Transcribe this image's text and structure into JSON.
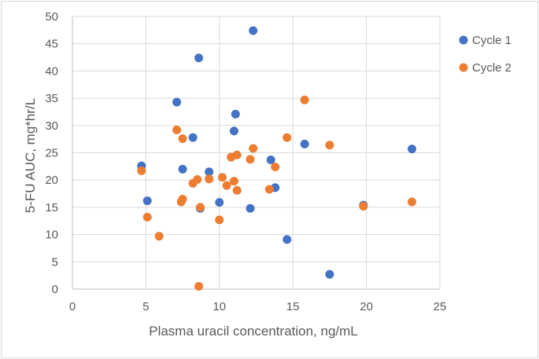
{
  "chart_data": {
    "type": "scatter",
    "title": "",
    "xlabel": "Plasma uracil concentration, ng/mL",
    "ylabel": "5-FU AUC, mg*hr/L",
    "xlim": [
      0,
      25
    ],
    "ylim": [
      0,
      50
    ],
    "xticks": [
      "0",
      "5",
      "10",
      "15",
      "20",
      "25"
    ],
    "yticks": [
      "0",
      "5",
      "10",
      "15",
      "20",
      "25",
      "30",
      "35",
      "40",
      "45",
      "50"
    ],
    "grid": true,
    "legend_position": "right",
    "series": [
      {
        "name": "Cycle 1",
        "color": "#4472C4",
        "points": [
          [
            4.7,
            22.6
          ],
          [
            5.1,
            16.2
          ],
          [
            7.1,
            34.3
          ],
          [
            7.5,
            22.0
          ],
          [
            8.2,
            27.8
          ],
          [
            8.6,
            42.4
          ],
          [
            8.7,
            14.8
          ],
          [
            9.3,
            21.5
          ],
          [
            10.0,
            15.9
          ],
          [
            11.0,
            29.0
          ],
          [
            11.1,
            32.1
          ],
          [
            12.1,
            14.8
          ],
          [
            12.3,
            47.4
          ],
          [
            13.5,
            23.7
          ],
          [
            13.8,
            18.6
          ],
          [
            14.6,
            9.1
          ],
          [
            15.8,
            26.6
          ],
          [
            17.5,
            2.7
          ],
          [
            19.8,
            15.4
          ],
          [
            23.1,
            25.7
          ]
        ]
      },
      {
        "name": "Cycle 2",
        "color": "#ED7D31",
        "points": [
          [
            4.7,
            21.7
          ],
          [
            5.1,
            13.2
          ],
          [
            5.9,
            9.7
          ],
          [
            7.1,
            29.2
          ],
          [
            7.4,
            16.0
          ],
          [
            7.5,
            16.5
          ],
          [
            7.5,
            27.6
          ],
          [
            8.2,
            19.4
          ],
          [
            8.5,
            20.1
          ],
          [
            8.7,
            15.0
          ],
          [
            8.6,
            0.5
          ],
          [
            9.3,
            20.2
          ],
          [
            10.0,
            12.7
          ],
          [
            10.2,
            20.5
          ],
          [
            10.5,
            19.0
          ],
          [
            10.8,
            24.2
          ],
          [
            11.0,
            19.8
          ],
          [
            11.2,
            24.6
          ],
          [
            11.2,
            18.1
          ],
          [
            12.1,
            23.8
          ],
          [
            12.3,
            25.8
          ],
          [
            13.4,
            18.3
          ],
          [
            13.8,
            22.4
          ],
          [
            14.6,
            27.8
          ],
          [
            15.8,
            34.7
          ],
          [
            17.5,
            26.4
          ],
          [
            19.8,
            15.2
          ],
          [
            23.1,
            16.0
          ]
        ]
      }
    ]
  }
}
